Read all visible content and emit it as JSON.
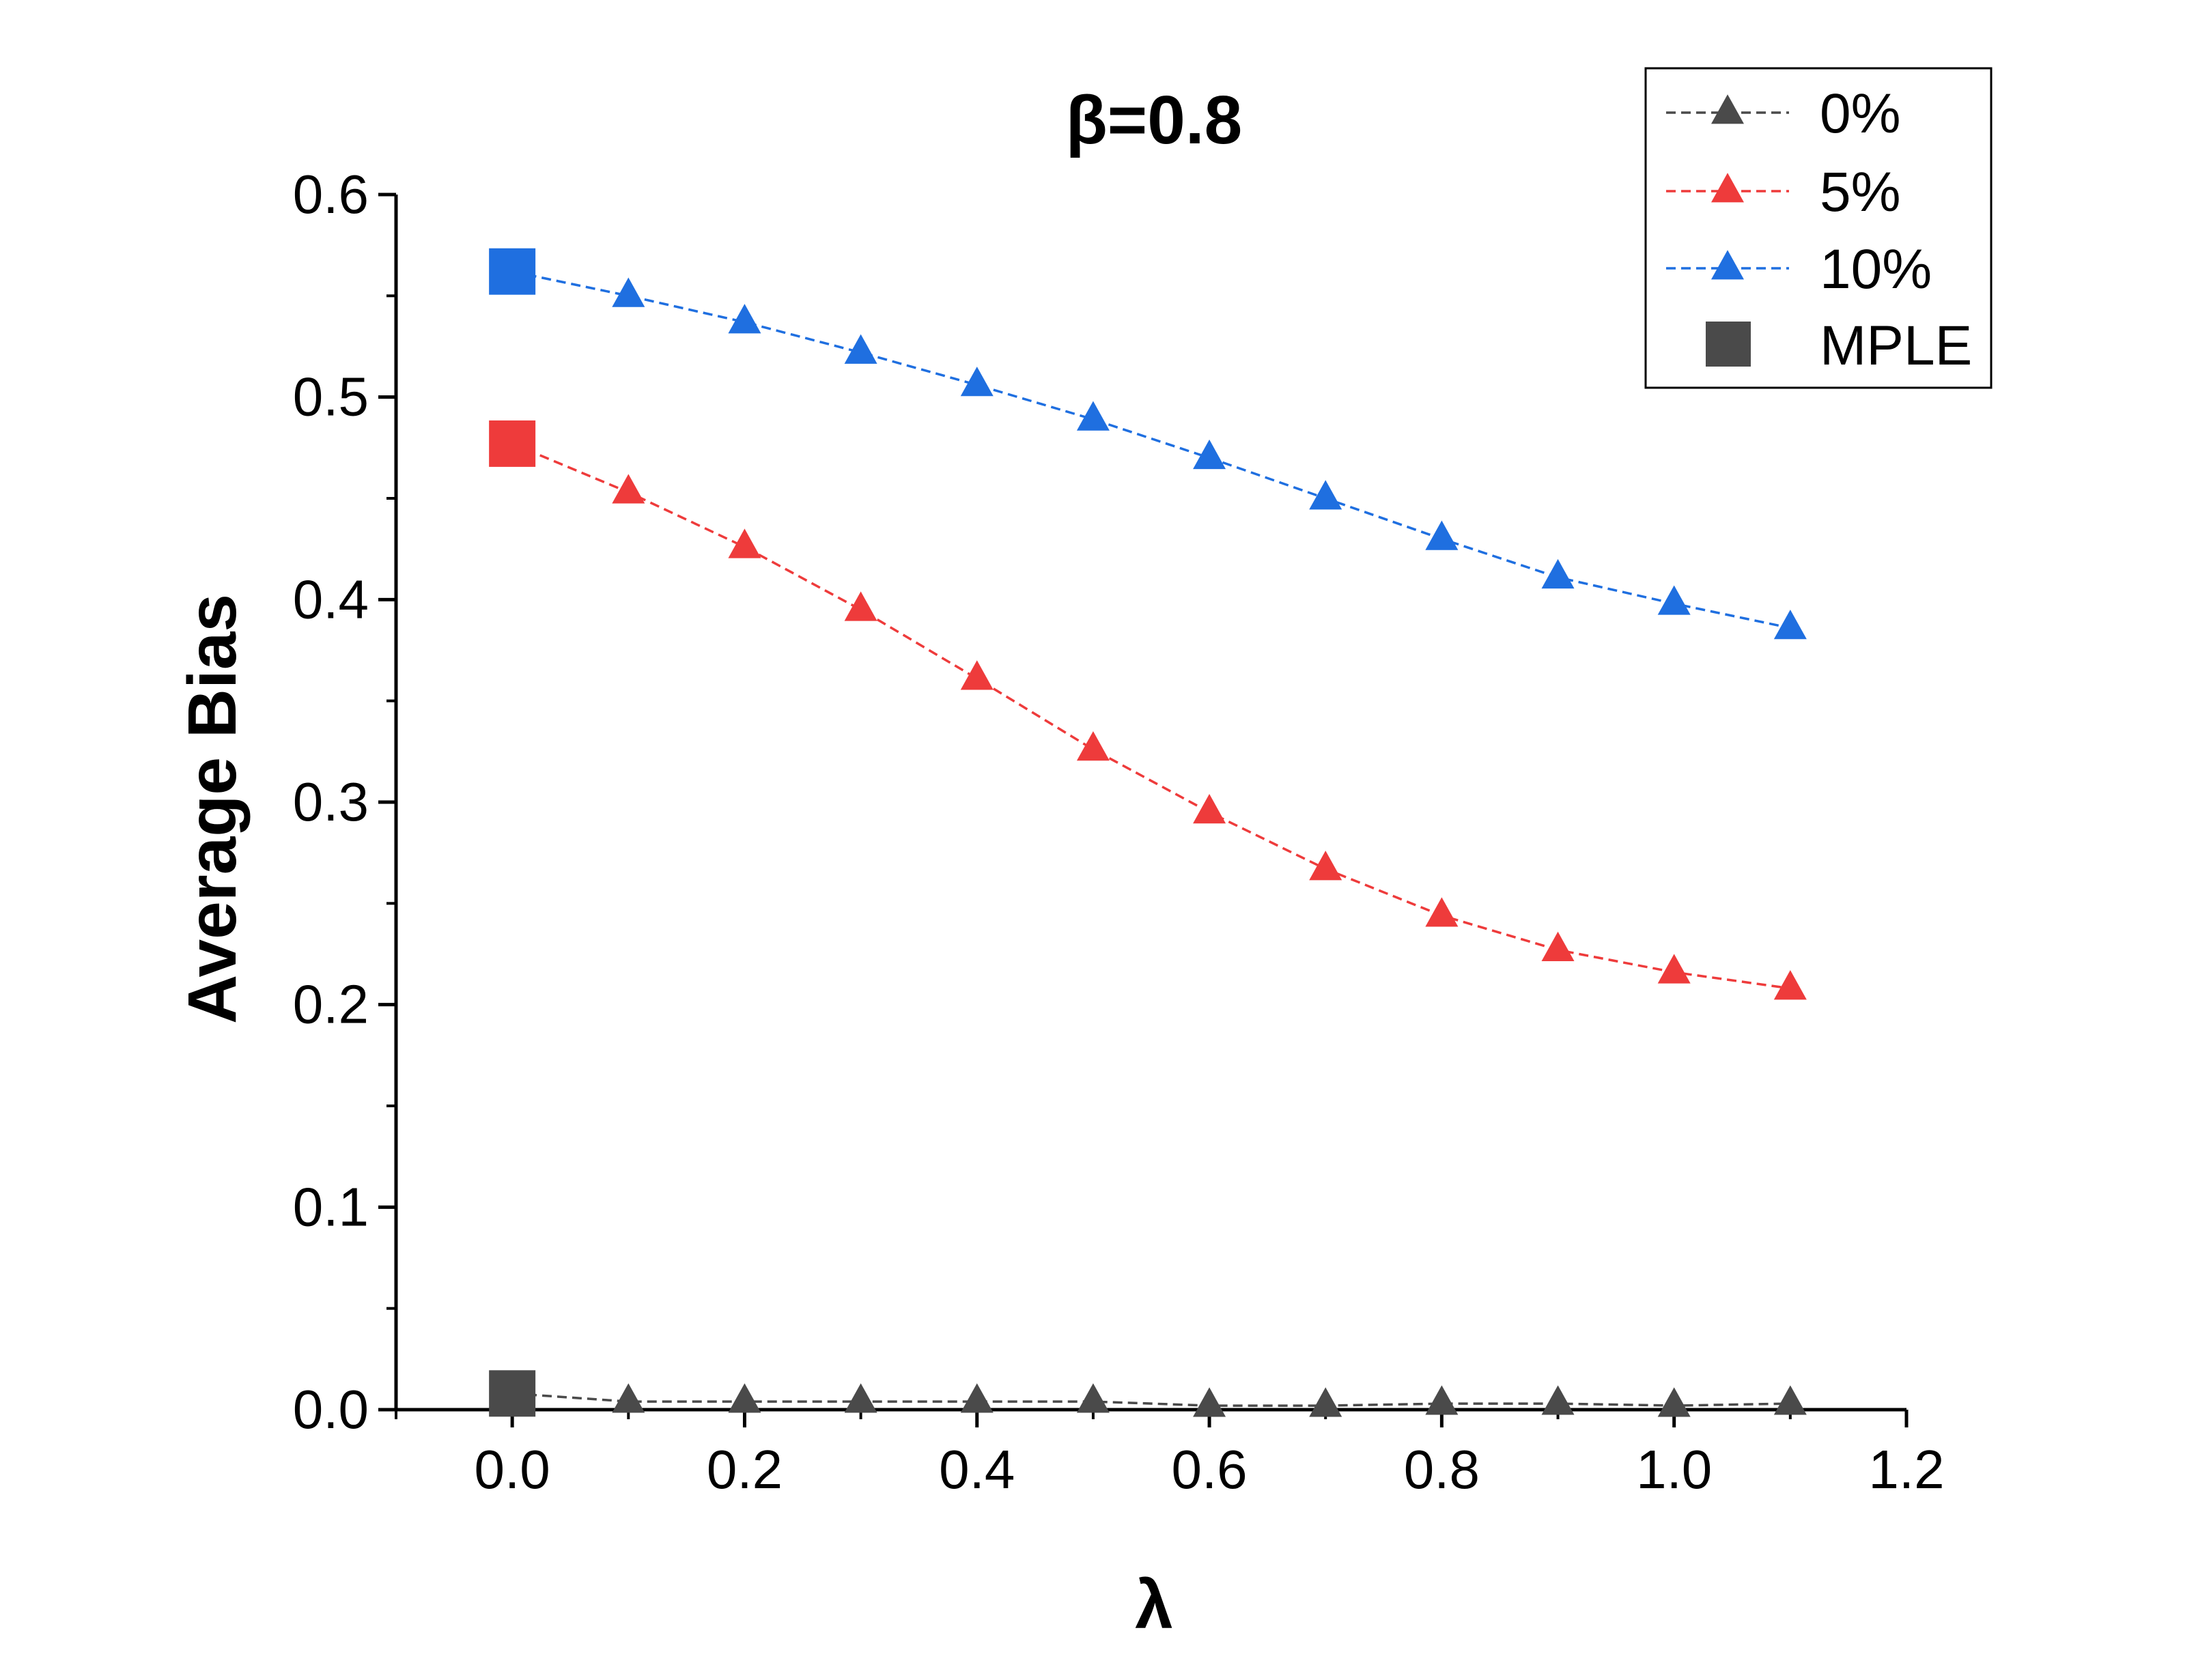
{
  "chart_data": {
    "type": "line",
    "title": "β=0.8",
    "xlabel": "λ",
    "ylabel": "Average Bias",
    "xlim": [
      -0.1,
      1.2
    ],
    "ylim": [
      0.0,
      0.6
    ],
    "xticks": [
      0.0,
      0.2,
      0.4,
      0.6,
      0.8,
      1.0,
      1.2
    ],
    "xtick_labels": [
      "0.0",
      "0.2",
      "0.4",
      "0.6",
      "0.8",
      "1.0",
      "1.2"
    ],
    "yticks": [
      0.0,
      0.1,
      0.2,
      0.3,
      0.4,
      0.5,
      0.6
    ],
    "ytick_labels": [
      "0.0",
      "0.1",
      "0.2",
      "0.3",
      "0.4",
      "0.5",
      "0.6"
    ],
    "grid": false,
    "legend_position": "top-right",
    "x": [
      0.0,
      0.1,
      0.2,
      0.3,
      0.4,
      0.5,
      0.6,
      0.7,
      0.8,
      0.9,
      1.0,
      1.1
    ],
    "series": [
      {
        "name": "0%",
        "color": "#4a4a4a",
        "marker": "triangle",
        "line": "dashed",
        "values": [
          0.008,
          0.004,
          0.004,
          0.004,
          0.004,
          0.004,
          0.002,
          0.002,
          0.003,
          0.003,
          0.002,
          0.003
        ]
      },
      {
        "name": "5%",
        "color": "#ee3b3b",
        "marker": "triangle",
        "line": "dashed",
        "values": [
          0.477,
          0.453,
          0.426,
          0.395,
          0.361,
          0.326,
          0.295,
          0.267,
          0.244,
          0.227,
          0.216,
          0.208
        ]
      },
      {
        "name": "10%",
        "color": "#1f6fe0",
        "marker": "triangle",
        "line": "dashed",
        "values": [
          0.562,
          0.55,
          0.537,
          0.522,
          0.506,
          0.489,
          0.47,
          0.45,
          0.43,
          0.411,
          0.398,
          0.386
        ]
      }
    ],
    "mple": {
      "name": "MPLE",
      "marker": "square",
      "legend_color": "#4a4a4a",
      "points": [
        {
          "x": 0.0,
          "y": 0.008,
          "color": "#4a4a4a"
        },
        {
          "x": 0.0,
          "y": 0.477,
          "color": "#ee3b3b"
        },
        {
          "x": 0.0,
          "y": 0.562,
          "color": "#1f6fe0"
        }
      ]
    }
  }
}
